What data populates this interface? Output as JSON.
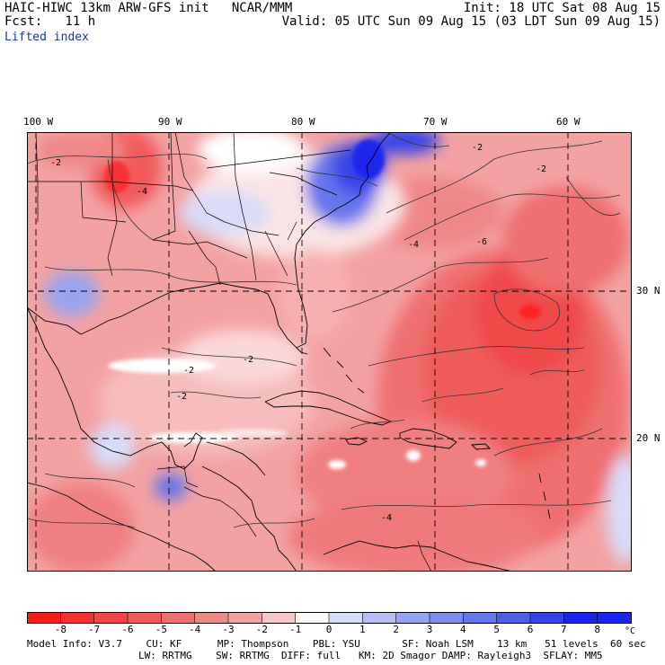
{
  "header": {
    "left_line1": "HAIC-HIWC 13km ARW-GFS init   NCAR/MMM",
    "left_line2": "Fcst:   11 h",
    "left_line3": "Lifted index",
    "right_line1": "Init: 18 UTC Sat 08 Aug 15",
    "right_line2": "Valid: 05 UTC Sun 09 Aug 15 (03 LDT Sun 09 Aug 15)"
  },
  "map": {
    "lon_labels": [
      "100 W",
      "90 W",
      "80 W",
      "70 W",
      "60 W"
    ],
    "lat_labels": [
      "30 N",
      "20 N"
    ],
    "contour_labels": [
      "-2",
      "-4",
      "-6",
      "-2",
      "-2",
      "-4",
      "-2",
      "-2",
      "-4",
      "-2"
    ],
    "colors": {
      "strong_red": "#ff1a1a",
      "red": "#f26060",
      "light_red": "#f7b0b0",
      "white": "#ffffff",
      "light_blue": "#c8d4f8",
      "blue": "#5a6ef0",
      "dark_blue": "#1a1aee"
    }
  },
  "colorbar": {
    "unit": "°C",
    "ticks": [
      "-8",
      "-7",
      "-6",
      "-5",
      "-4",
      "-3",
      "-2",
      "-1",
      "0",
      "1",
      "2",
      "3",
      "4",
      "5",
      "6",
      "7",
      "8"
    ],
    "colors": [
      "#ff1a1a",
      "#f83030",
      "#f54545",
      "#f25a5a",
      "#f07070",
      "#f08888",
      "#f3a2a2",
      "#f8c6c6",
      "#ffffff",
      "#d8dcfa",
      "#b4bef5",
      "#98a4f1",
      "#7e8cee",
      "#6676ec",
      "#4e5eea",
      "#3444e8",
      "#1a26ee"
    ]
  },
  "footer": {
    "line1": "Model Info: V3.7    CU: KF      MP: Thompson    PBL: YSU       SF: Noah LSM    13 km   51 levels  60 sec",
    "line2": "LW: RRTMG    SW: RRTMG  DIFF: full   KM: 2D Smagor DAMP: Rayleigh3  SFLAY: MM5"
  }
}
